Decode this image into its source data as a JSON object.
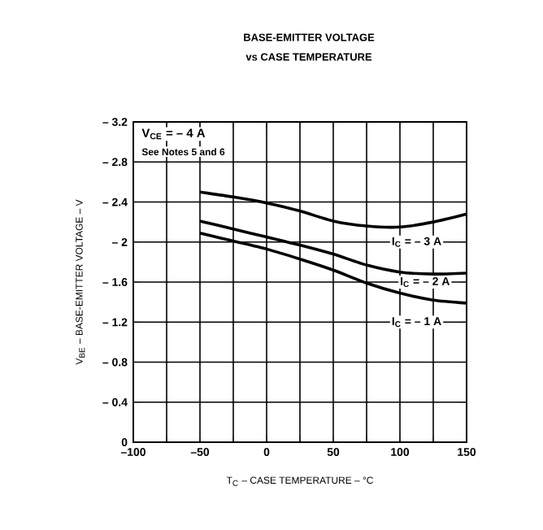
{
  "chart_data": {
    "type": "line",
    "title": "BASE-EMITTER VOLTAGE",
    "subtitle": "vs CASE TEMPERATURE",
    "xlabel": "T$_{C}$ – CASE TEMPERATURE – °C",
    "ylabel": "V$_{BE}$ – BASE-EMITTER VOLTAGE – V",
    "x": [
      -50,
      -25,
      0,
      25,
      50,
      75,
      100,
      125,
      150
    ],
    "series": [
      {
        "color": "#000000",
        "values": [
          -2.5,
          -2.45,
          -2.39,
          -2.31,
          -2.21,
          -2.16,
          -2.15,
          -2.2,
          -2.28
        ]
      },
      {
        "color": "#000000",
        "values": [
          -2.21,
          -2.13,
          -2.05,
          -1.97,
          -1.88,
          -1.77,
          -1.7,
          -1.68,
          -1.69
        ]
      },
      {
        "color": "#000000",
        "values": [
          -2.09,
          -2.01,
          -1.93,
          -1.83,
          -1.72,
          -1.59,
          -1.49,
          -1.42,
          -1.39
        ]
      }
    ],
    "xlim": [
      -100,
      150
    ],
    "ylim": [
      0,
      -3.2
    ],
    "xticks": [
      {
        "value": -100,
        "label": "–100"
      },
      {
        "value": -75,
        "label": null
      },
      {
        "value": -50,
        "label": "–50"
      },
      {
        "value": -25,
        "label": null
      },
      0,
      {
        "value": 25,
        "label": null
      },
      50,
      {
        "value": 75,
        "label": null
      },
      100,
      {
        "value": 125,
        "label": null
      },
      150
    ],
    "yticks": [
      0,
      {
        "value": -0.4,
        "label": "– 0.4"
      },
      {
        "value": -0.8,
        "label": "– 0.8"
      },
      {
        "value": -1.2,
        "label": "– 1.2"
      },
      {
        "value": -1.6,
        "label": "– 1.6"
      },
      {
        "value": -2,
        "label": "– 2"
      },
      {
        "value": -2.4,
        "label": "– 2.4"
      },
      {
        "value": -2.8,
        "label": "– 2.8"
      },
      {
        "value": -3.2,
        "label": "– 3.2"
      }
    ],
    "grid": true,
    "line_style": "solid",
    "marker": "none",
    "annotations": [
      "V$_{CE}$ = – 4 A",
      "See Notes 5 and 6",
      "I$_{C}$ = – 3 A",
      "I$_{C}$ = – 2 A",
      "I$_{C}$ = – 1 A"
    ]
  }
}
